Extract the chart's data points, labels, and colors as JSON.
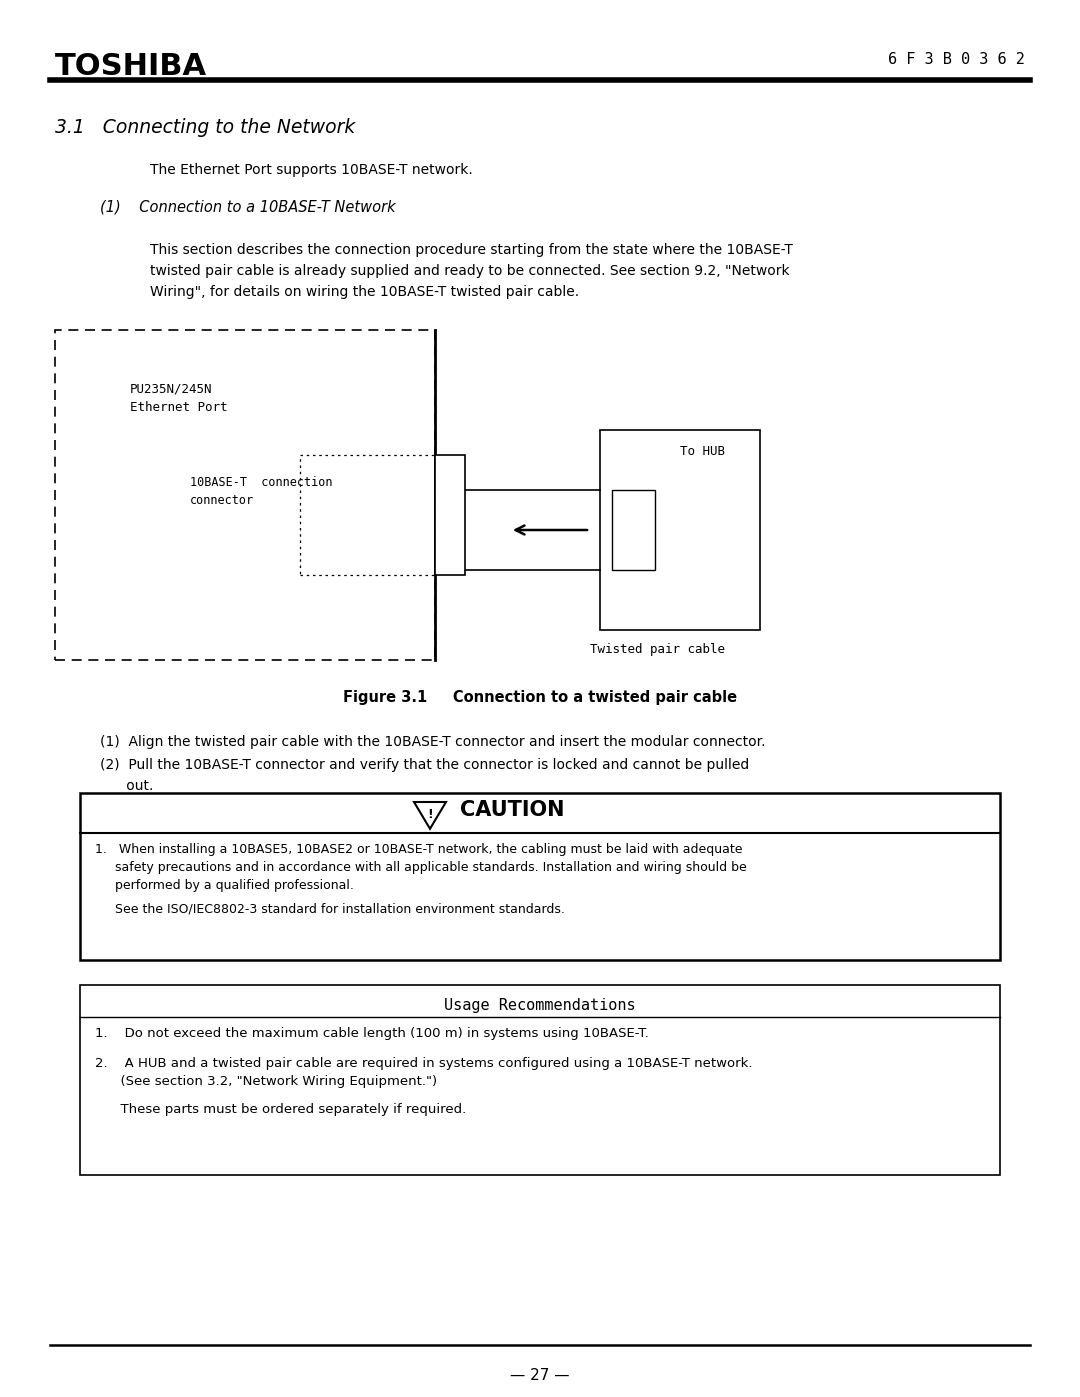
{
  "page_bg": "#ffffff",
  "header_logo": "TOSHIBA",
  "header_doc_num": "6 F 3 B 0 3 6 2",
  "section_title": "3.1   Connecting to the Network",
  "intro_text": "The Ethernet Port supports 10BASE-T network.",
  "subsection_label": "(1)    Connection to a 10BASE-T Network",
  "body_text_lines": [
    "This section describes the connection procedure starting from the state where the 10BASE-T",
    "twisted pair cable is already supplied and ready to be connected. See section 9.2, \"Network",
    "Wiring\", for details on wiring the 10BASE-T twisted pair cable."
  ],
  "fig_label1_line1": "PU235N/245N",
  "fig_label1_line2": "Ethernet Port",
  "fig_label2_line1": "10BASE-T  connection",
  "fig_label2_line2": "connector",
  "fig_label3": "To HUB",
  "fig_label4": "Twisted pair cable",
  "fig_caption": "Figure 3.1     Connection to a twisted pair cable",
  "step1": "(1)  Align the twisted pair cable with the 10BASE-T connector and insert the modular connector.",
  "step2a": "(2)  Pull the 10BASE-T connector and verify that the connector is locked and cannot be pulled",
  "step2b": "      out.",
  "caution_title": "CAUTION",
  "caution_text1a": "1.   When installing a 10BASE5, 10BASE2 or 10BASE-T network, the cabling must be laid with adequate",
  "caution_text1b": "     safety precautions and in accordance with all applicable standards. Installation and wiring should be",
  "caution_text1c": "     performed by a qualified professional.",
  "caution_text2": "     See the ISO/IEC8802-3 standard for installation environment standards.",
  "box2_title": "Usage Recommendations",
  "usage_text1": "1.    Do not exceed the maximum cable length (100 m) in systems using 10BASE-T.",
  "usage_text2a": "2.    A HUB and a twisted pair cable are required in systems configured using a 10BASE-T network.",
  "usage_text2b": "      (See section 3.2, \"Network Wiring Equipment.\")",
  "usage_text3": "      These parts must be ordered separately if required.",
  "page_num": "— 27 —"
}
